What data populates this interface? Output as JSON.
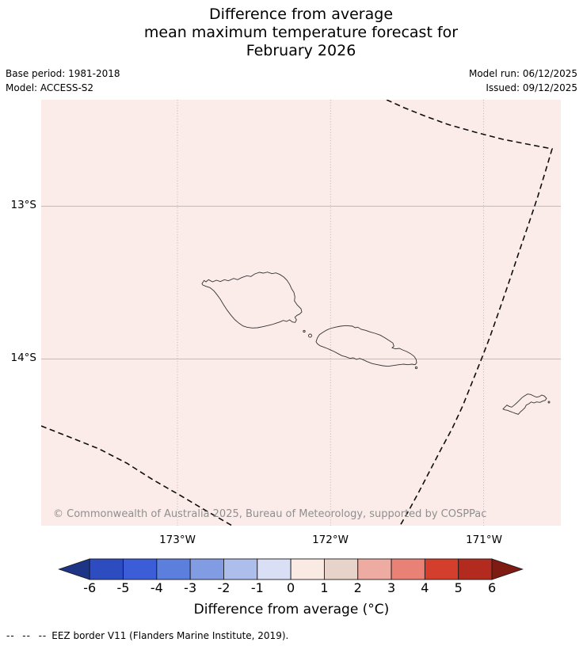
{
  "title": {
    "line1": "Difference from average",
    "line2": "mean maximum temperature forecast for",
    "line3": "February 2026"
  },
  "meta": {
    "base_period": "Base period: 1981-2018",
    "model": "Model: ACCESS-S2",
    "model_run": "Model run: 06/12/2025",
    "issued": "Issued: 09/12/2025"
  },
  "map": {
    "background_color": "#fbece9",
    "ytick_labels": {
      "t13": "13°S",
      "t14": "14°S"
    },
    "xtick_labels": {
      "t173": "173°W",
      "t172": "172°W",
      "t171": "171°W"
    },
    "copyright": "© Commonwealth of Australia 2025, Bureau of Meteorology, supported by COSPPac"
  },
  "colorbar": {
    "label": "Difference from average (°C)",
    "ticks": [
      "-6",
      "-5",
      "-4",
      "-3",
      "-2",
      "-1",
      "0",
      "1",
      "2",
      "3",
      "4",
      "5",
      "6"
    ],
    "segment_colors": [
      "#2d4cbf",
      "#3b5ed8",
      "#5c7fdd",
      "#829ce4",
      "#aebeec",
      "#d9e0f5",
      "#faeae4",
      "#e8d3cb",
      "#eeaba1",
      "#e98177",
      "#d43e2d",
      "#b32a1e"
    ],
    "left_arrow_color": "#1e3486",
    "right_arrow_color": "#7e1c13",
    "value_range": [
      -6,
      6
    ]
  },
  "footer": {
    "dash_sample": "--  --  --",
    "note": "EEZ border V11 (Flanders Marine Institute, 2019)."
  }
}
